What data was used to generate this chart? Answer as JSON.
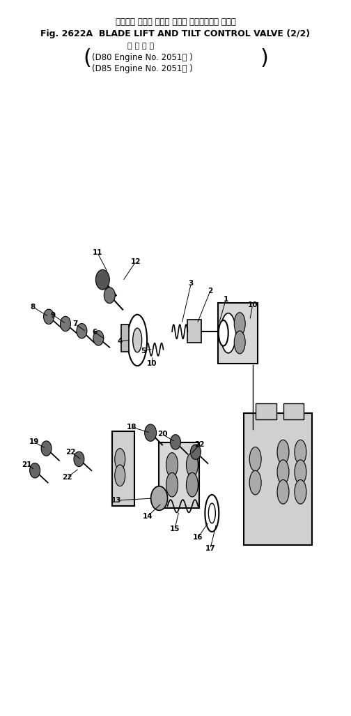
{
  "title_japanese": "ブレード リフト および チルト コントロール バルブ",
  "title_english": "Fig. 2622A  BLADE LIFT AND TILT CONTROL VALVE (2/2)",
  "subtitle_japanese": "適 用 号 機",
  "subtitle_line1": "(D80 Engine No. 2051～ )",
  "subtitle_line2": "(D85 Engine No. 2051～ )",
  "bg_color": "#ffffff",
  "text_color": "#000000",
  "fig_width": 5.04,
  "fig_height": 10.26,
  "dpi": 100
}
